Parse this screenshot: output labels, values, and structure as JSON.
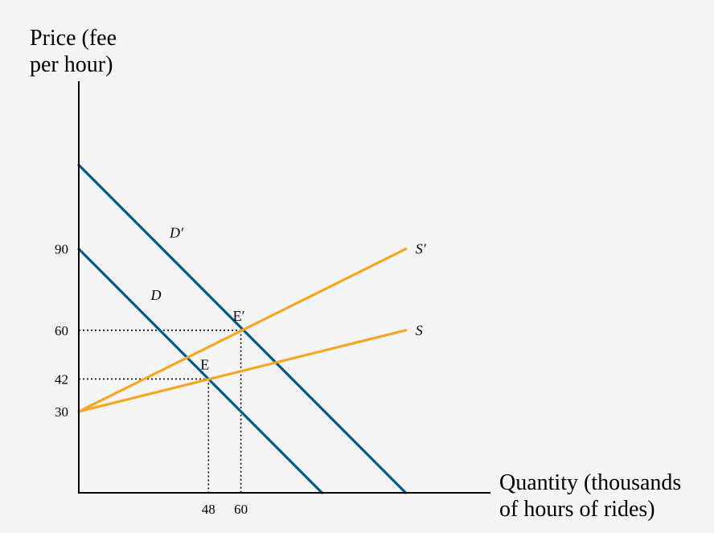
{
  "chart_data": {
    "type": "line",
    "xlabel_lines": [
      "Quantity (thousands",
      "of hours of rides)"
    ],
    "ylabel_lines": [
      "Price (fee",
      "per hour)"
    ],
    "xlim": [
      0,
      100
    ],
    "ylim": [
      0,
      150
    ],
    "grid": false,
    "legend": "none",
    "x_ticks": [
      48,
      60
    ],
    "y_ticks": [
      30,
      42,
      60,
      90
    ],
    "series": [
      {
        "name": "D",
        "color": "#005a8c",
        "points": [
          [
            0,
            90
          ],
          [
            90,
            0
          ]
        ]
      },
      {
        "name": "D′",
        "color": "#005a8c",
        "points": [
          [
            0,
            121
          ],
          [
            121,
            0
          ]
        ]
      },
      {
        "name": "S",
        "color": "#f5a623",
        "points": [
          [
            0,
            30
          ],
          [
            121,
            60
          ]
        ]
      },
      {
        "name": "S′",
        "color": "#f5a623",
        "points": [
          [
            0,
            30
          ],
          [
            121,
            90
          ]
        ]
      }
    ],
    "curve_labels": [
      {
        "text": "D′",
        "x": 36,
        "y": 96
      },
      {
        "text": "D",
        "x": 29,
        "y": 73
      },
      {
        "text": "S′",
        "x": 127,
        "y": 90
      },
      {
        "text": "S",
        "x": 127,
        "y": 60
      }
    ],
    "equilibria": [
      {
        "label": "E",
        "x": 48,
        "y": 42
      },
      {
        "label": "E′",
        "x": 60,
        "y": 60
      }
    ]
  }
}
